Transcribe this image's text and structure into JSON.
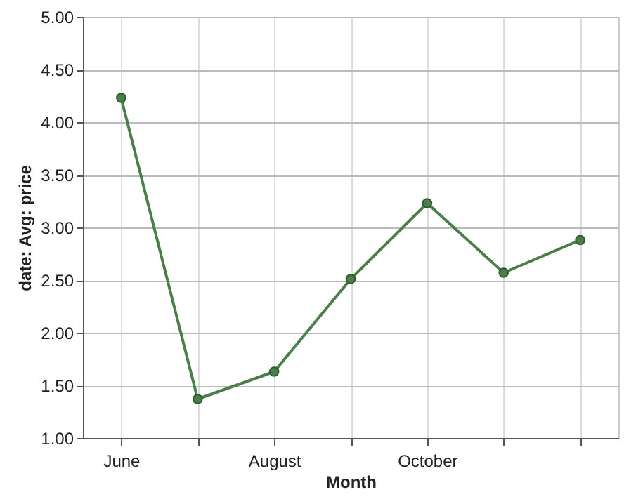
{
  "chart_data": {
    "type": "line",
    "xlabel": "Month",
    "ylabel": "date: Avg: price",
    "categories": [
      "June",
      null,
      "August",
      null,
      "October",
      null,
      null
    ],
    "series": [
      {
        "color": "#4a7f4a",
        "values": [
          4.23,
          1.37,
          1.63,
          2.51,
          3.23,
          2.57,
          2.88
        ]
      }
    ],
    "ylim": [
      1,
      5
    ],
    "yticks": [
      {
        "value": 1,
        "label": "1.00"
      },
      {
        "value": 1.5,
        "label": "1.50"
      },
      {
        "value": 2,
        "label": "2.00"
      },
      {
        "value": 2.5,
        "label": "2.50"
      },
      {
        "value": 3,
        "label": "3.00"
      },
      {
        "value": 3.5,
        "label": "3.50"
      },
      {
        "value": 4,
        "label": "4.00"
      },
      {
        "value": 4.5,
        "label": "4.50"
      },
      {
        "value": 5,
        "label": "5.00"
      }
    ],
    "grid": true,
    "marker": "circle",
    "line_style": "solid"
  }
}
